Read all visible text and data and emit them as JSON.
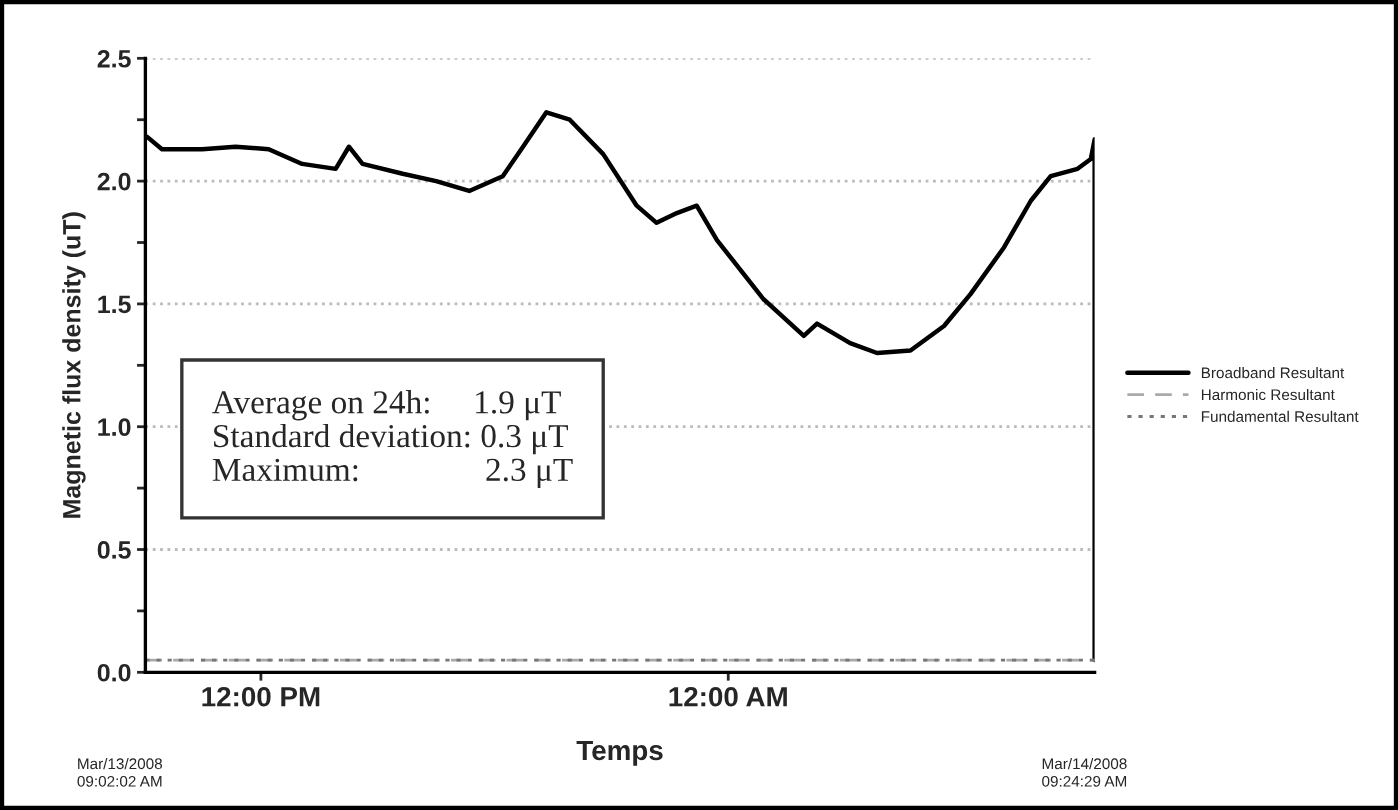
{
  "chart_data": {
    "type": "line",
    "xlabel": "Temps",
    "ylabel": "Magnetic flux density (uT)",
    "xlim": [
      9.034,
      33.408
    ],
    "ylim": [
      0,
      2.5
    ],
    "xticks": [
      {
        "value": 12,
        "label": "12:00 PM"
      },
      {
        "value": 24,
        "label": "12:00 AM"
      }
    ],
    "yticks": [
      {
        "value": 0,
        "label": "0.0"
      },
      {
        "value": 0.25,
        "label": null
      },
      {
        "value": 0.5,
        "label": "0.5"
      },
      {
        "value": 0.75,
        "label": null
      },
      {
        "value": 1,
        "label": "1.0"
      },
      {
        "value": 1.25,
        "label": null
      },
      {
        "value": 1.5,
        "label": "1.5"
      },
      {
        "value": 1.75,
        "label": null
      },
      {
        "value": 2,
        "label": "2.0"
      },
      {
        "value": 2.25,
        "label": null
      },
      {
        "value": 2.5,
        "label": "2.5"
      }
    ],
    "grid": "y",
    "legend": "right",
    "annotations": [
      "Average on 24h:     1.9 μT\nStandard deviation: 0.3 μT\nMaximum:               2.3 μT",
      "Mar/13/2008\n09:02:02 AM",
      "Mar/14/2008\n09:24:29 AM"
    ],
    "series": [
      {
        "name": "Broadband Resultant",
        "color": "#000000",
        "line_style": "solid",
        "x": [
          9.08,
          9.46,
          10.49,
          11.35,
          12.2,
          13.06,
          13.92,
          14.26,
          14.61,
          15.64,
          16.5,
          17.35,
          18.21,
          18.73,
          19.33,
          19.93,
          20.79,
          21.65,
          22.16,
          22.68,
          23.19,
          23.71,
          24.9,
          25.94,
          26.28,
          27.13,
          27.82,
          28.68,
          29.54,
          30.22,
          31.08,
          31.77,
          32.28,
          32.97,
          33.31,
          33.408,
          33.408
        ],
        "values": [
          2.18,
          2.13,
          2.13,
          2.14,
          2.13,
          2.07,
          2.05,
          2.14,
          2.07,
          2.03,
          2.0,
          1.96,
          2.02,
          2.14,
          2.28,
          2.25,
          2.11,
          1.9,
          1.83,
          1.87,
          1.9,
          1.76,
          1.52,
          1.37,
          1.42,
          1.34,
          1.3,
          1.31,
          1.41,
          1.54,
          1.73,
          1.92,
          2.02,
          2.05,
          2.09,
          2.17,
          0.05
        ]
      },
      {
        "name": "Harmonic Resultant",
        "color": "#aaaaaa",
        "line_style": "dashed",
        "x": [
          9.034,
          33.408
        ],
        "values": [
          0.05,
          0.05
        ]
      },
      {
        "name": "Fundamental Resultant",
        "color": "#777777",
        "line_style": "dotted",
        "x": [
          9.034,
          33.408
        ],
        "values": [
          0.05,
          0.05
        ]
      }
    ]
  }
}
